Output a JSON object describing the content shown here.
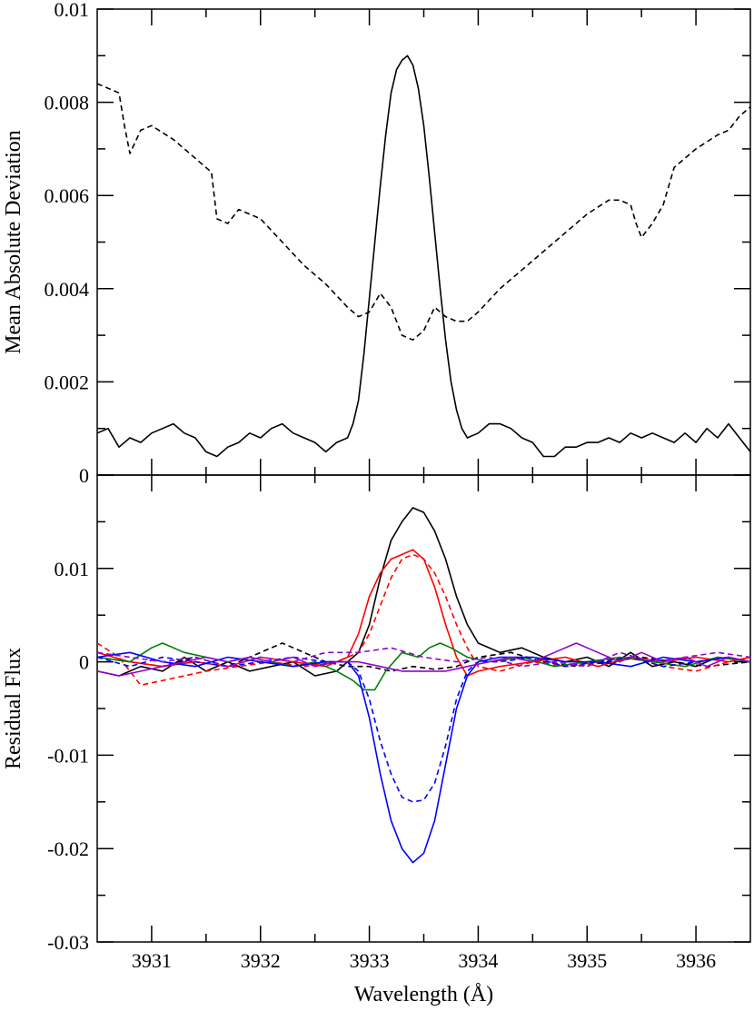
{
  "chart_data": [
    {
      "type": "line",
      "title": "",
      "xlabel": "",
      "ylabel": "Mean Absolute Deviation",
      "xlim": [
        3930.5,
        3936.5
      ],
      "ylim": [
        0,
        0.01
      ],
      "yticks": [
        0,
        0.002,
        0.004,
        0.006,
        0.008,
        0.01
      ],
      "ytick_labels": [
        "0",
        "0.002",
        "0.004",
        "0.006",
        "0.008",
        "0.01"
      ],
      "grid": false,
      "series": [
        {
          "color": "#000000",
          "dash": "solid",
          "x": [
            3930.5,
            3930.6,
            3930.7,
            3930.8,
            3930.9,
            3931.0,
            3931.1,
            3931.2,
            3931.3,
            3931.4,
            3931.5,
            3931.6,
            3931.7,
            3931.8,
            3931.9,
            3932.0,
            3932.1,
            3932.2,
            3932.3,
            3932.4,
            3932.5,
            3932.6,
            3932.7,
            3932.8,
            3932.85,
            3932.9,
            3932.95,
            3933.0,
            3933.05,
            3933.1,
            3933.15,
            3933.2,
            3933.25,
            3933.3,
            3933.35,
            3933.4,
            3933.45,
            3933.5,
            3933.55,
            3933.6,
            3933.65,
            3933.7,
            3933.75,
            3933.8,
            3933.85,
            3933.9,
            3934.0,
            3934.1,
            3934.2,
            3934.3,
            3934.4,
            3934.5,
            3934.6,
            3934.7,
            3934.8,
            3934.9,
            3935.0,
            3935.1,
            3935.2,
            3935.3,
            3935.4,
            3935.5,
            3935.6,
            3935.7,
            3935.8,
            3935.9,
            3936.0,
            3936.1,
            3936.2,
            3936.3,
            3936.4,
            3936.5
          ],
          "y": [
            0.0009,
            0.001,
            0.0006,
            0.0008,
            0.0007,
            0.0009,
            0.001,
            0.0011,
            0.0009,
            0.0008,
            0.0005,
            0.0004,
            0.0006,
            0.0007,
            0.0009,
            0.0008,
            0.001,
            0.0011,
            0.0009,
            0.0008,
            0.0007,
            0.0005,
            0.0007,
            0.0008,
            0.0011,
            0.0016,
            0.0026,
            0.0038,
            0.005,
            0.0062,
            0.0073,
            0.0082,
            0.0087,
            0.0089,
            0.009,
            0.0088,
            0.0083,
            0.0075,
            0.0064,
            0.0052,
            0.004,
            0.0029,
            0.002,
            0.0014,
            0.001,
            0.0008,
            0.0009,
            0.0011,
            0.0011,
            0.001,
            0.0008,
            0.0007,
            0.0004,
            0.0004,
            0.0006,
            0.0006,
            0.0007,
            0.0007,
            0.0008,
            0.0007,
            0.0009,
            0.0008,
            0.0009,
            0.0008,
            0.0007,
            0.0009,
            0.0007,
            0.001,
            0.0008,
            0.0011,
            0.0008,
            0.0005
          ]
        },
        {
          "color": "#000000",
          "dash": "dashed",
          "x": [
            3930.5,
            3930.6,
            3930.7,
            3930.75,
            3930.8,
            3930.9,
            3931.0,
            3931.2,
            3931.4,
            3931.55,
            3931.6,
            3931.7,
            3931.8,
            3932.0,
            3932.2,
            3932.4,
            3932.6,
            3932.8,
            3932.9,
            3933.0,
            3933.1,
            3933.2,
            3933.3,
            3933.4,
            3933.5,
            3933.6,
            3933.7,
            3933.8,
            3933.9,
            3934.0,
            3934.2,
            3934.4,
            3934.6,
            3934.8,
            3935.0,
            3935.2,
            3935.3,
            3935.4,
            3935.45,
            3935.5,
            3935.6,
            3935.7,
            3935.8,
            3936.0,
            3936.2,
            3936.3,
            3936.4,
            3936.5
          ],
          "y": [
            0.0084,
            0.0083,
            0.0082,
            0.0075,
            0.0069,
            0.0074,
            0.0075,
            0.0072,
            0.0068,
            0.0065,
            0.0055,
            0.0054,
            0.0057,
            0.0055,
            0.005,
            0.0045,
            0.0041,
            0.0036,
            0.0034,
            0.0035,
            0.0039,
            0.0036,
            0.003,
            0.0029,
            0.0031,
            0.0036,
            0.0034,
            0.0033,
            0.0033,
            0.0035,
            0.004,
            0.0044,
            0.0048,
            0.0052,
            0.0056,
            0.0059,
            0.0059,
            0.0058,
            0.0054,
            0.0051,
            0.0054,
            0.0058,
            0.0066,
            0.007,
            0.0073,
            0.0074,
            0.0077,
            0.0079
          ]
        }
      ]
    },
    {
      "type": "line",
      "title": "",
      "xlabel": "Wavelength (Å)",
      "ylabel": "Residual Flux",
      "xlim": [
        3930.5,
        3936.5
      ],
      "ylim": [
        -0.03,
        0.02
      ],
      "xticks": [
        3931,
        3932,
        3933,
        3934,
        3935,
        3936
      ],
      "xtick_labels": [
        "3931",
        "3932",
        "3933",
        "3934",
        "3935",
        "3936"
      ],
      "yticks": [
        -0.03,
        -0.02,
        -0.01,
        0,
        0.01
      ],
      "ytick_labels": [
        "-0.03",
        "-0.02",
        "-0.01",
        "0",
        "0.01"
      ],
      "grid": false,
      "series": [
        {
          "color": "#000000",
          "dash": "solid",
          "x": [
            3930.5,
            3930.7,
            3930.9,
            3931.1,
            3931.3,
            3931.5,
            3931.7,
            3931.9,
            3932.1,
            3932.3,
            3932.5,
            3932.7,
            3932.9,
            3933.0,
            3933.1,
            3933.2,
            3933.3,
            3933.4,
            3933.5,
            3933.6,
            3933.7,
            3933.8,
            3933.9,
            3934.0,
            3934.2,
            3934.4,
            3934.6,
            3934.8,
            3935.0,
            3935.2,
            3935.4,
            3935.6,
            3935.8,
            3936.0,
            3936.2,
            3936.5
          ],
          "y": [
            -0.001,
            -0.0015,
            -0.0005,
            -0.001,
            0.0005,
            -0.001,
            0,
            -0.001,
            -0.0005,
            0,
            -0.0015,
            -0.001,
            0.001,
            0.004,
            0.009,
            0.013,
            0.015,
            0.0165,
            0.016,
            0.014,
            0.011,
            0.007,
            0.004,
            0.002,
            0.001,
            0.0015,
            0.0005,
            0,
            0.0005,
            -0.0005,
            0.001,
            -0.0005,
            0,
            -0.0005,
            0.0005,
            0
          ]
        },
        {
          "color": "#000000",
          "dash": "dashed",
          "x": [
            3930.5,
            3930.8,
            3931.1,
            3931.4,
            3931.7,
            3932.0,
            3932.2,
            3932.4,
            3932.6,
            3932.8,
            3933.0,
            3933.2,
            3933.4,
            3933.6,
            3933.8,
            3934.0,
            3934.3,
            3934.6,
            3934.9,
            3935.2,
            3935.5,
            3935.8,
            3936.1,
            3936.5
          ],
          "y": [
            0.0005,
            0,
            -0.0005,
            0.0005,
            -0.0005,
            0.001,
            0.002,
            0.001,
            0,
            -0.0005,
            -0.0005,
            -0.001,
            -0.0005,
            -0.0008,
            -0.0005,
            0.0005,
            0.001,
            0,
            -0.0005,
            0,
            0.0005,
            0,
            -0.0005,
            0
          ]
        },
        {
          "color": "#ff0000",
          "dash": "solid",
          "x": [
            3930.5,
            3930.8,
            3931.1,
            3931.4,
            3931.7,
            3932.0,
            3932.3,
            3932.6,
            3932.8,
            3932.9,
            3933.0,
            3933.1,
            3933.2,
            3933.3,
            3933.4,
            3933.5,
            3933.6,
            3933.7,
            3933.8,
            3933.9,
            3934.0,
            3934.2,
            3934.5,
            3934.8,
            3935.1,
            3935.4,
            3935.7,
            3936.0,
            3936.3,
            3936.5
          ],
          "y": [
            0.001,
            0,
            -0.0005,
            0,
            -0.0005,
            0.0005,
            0,
            -0.0005,
            0.0005,
            0.003,
            0.007,
            0.0095,
            0.011,
            0.0115,
            0.012,
            0.011,
            0.008,
            0.004,
            0.0005,
            -0.0015,
            -0.001,
            -0.0005,
            0,
            0.0005,
            -0.0005,
            0.0005,
            0,
            0.0005,
            0,
            0.0005
          ]
        },
        {
          "color": "#ff0000",
          "dash": "dashed",
          "x": [
            3930.5,
            3930.7,
            3930.9,
            3931.1,
            3931.3,
            3931.5,
            3931.8,
            3932.1,
            3932.4,
            3932.7,
            3932.9,
            3933.0,
            3933.1,
            3933.2,
            3933.3,
            3933.4,
            3933.5,
            3933.6,
            3933.7,
            3933.8,
            3933.9,
            3934.0,
            3934.2,
            3934.5,
            3934.8,
            3935.1,
            3935.4,
            3935.7,
            3936.0,
            3936.3,
            3936.5
          ],
          "y": [
            0.002,
            0.0005,
            -0.0025,
            -0.002,
            -0.0015,
            -0.001,
            -0.0005,
            0,
            -0.0005,
            0,
            0.001,
            0.003,
            0.006,
            0.009,
            0.011,
            0.0115,
            0.011,
            0.0095,
            0.007,
            0.004,
            0.0015,
            -0.0005,
            -0.001,
            0,
            -0.0005,
            0,
            0.0005,
            -0.0005,
            -0.001,
            0,
            0.0005
          ]
        },
        {
          "color": "#008000",
          "dash": "solid",
          "x": [
            3930.5,
            3930.8,
            3931.0,
            3931.1,
            3931.3,
            3931.5,
            3931.7,
            3931.9,
            3932.1,
            3932.3,
            3932.5,
            3932.7,
            3932.85,
            3932.95,
            3933.05,
            3933.15,
            3933.3,
            3933.45,
            3933.55,
            3933.65,
            3933.75,
            3933.9,
            3934.1,
            3934.4,
            3934.7,
            3935.0,
            3935.3,
            3935.6,
            3935.9,
            3936.2,
            3936.5
          ],
          "y": [
            0.0005,
            0,
            0.0015,
            0.002,
            0.001,
            0.0005,
            0,
            0.0005,
            0,
            -0.0005,
            0,
            -0.001,
            -0.002,
            -0.003,
            -0.003,
            -0.001,
            0.001,
            0.0005,
            0.0015,
            0.002,
            0.0015,
            0.0005,
            0,
            0.0005,
            -0.0005,
            0,
            0.0005,
            0,
            -0.0005,
            0.0005,
            0
          ]
        },
        {
          "color": "#0000ff",
          "dash": "solid",
          "x": [
            3930.5,
            3930.8,
            3931.1,
            3931.4,
            3931.7,
            3932.0,
            3932.3,
            3932.6,
            3932.8,
            3932.9,
            3933.0,
            3933.1,
            3933.2,
            3933.3,
            3933.4,
            3933.5,
            3933.6,
            3933.7,
            3933.8,
            3933.9,
            3934.0,
            3934.2,
            3934.5,
            3934.8,
            3935.1,
            3935.4,
            3935.7,
            3936.0,
            3936.3,
            3936.5
          ],
          "y": [
            0.0005,
            0.001,
            0,
            -0.0005,
            0.0005,
            0,
            -0.0005,
            0,
            0,
            -0.0015,
            -0.006,
            -0.012,
            -0.017,
            -0.02,
            -0.0215,
            -0.0205,
            -0.017,
            -0.011,
            -0.005,
            -0.0015,
            0,
            0.0005,
            0.0005,
            0,
            0,
            -0.0005,
            0.0005,
            0,
            0.0005,
            0
          ]
        },
        {
          "color": "#0000ff",
          "dash": "dashed",
          "x": [
            3930.5,
            3930.8,
            3931.1,
            3931.4,
            3931.7,
            3932.0,
            3932.3,
            3932.6,
            3932.8,
            3932.9,
            3933.0,
            3933.1,
            3933.2,
            3933.3,
            3933.4,
            3933.5,
            3933.6,
            3933.7,
            3933.8,
            3933.9,
            3934.0,
            3934.2,
            3934.5,
            3934.8,
            3935.1,
            3935.4,
            3935.7,
            3936.0,
            3936.3,
            3936.5
          ],
          "y": [
            0.0005,
            -0.0005,
            0.0005,
            0,
            -0.0005,
            0,
            0.0005,
            0,
            0,
            -0.001,
            -0.004,
            -0.0085,
            -0.012,
            -0.0145,
            -0.015,
            -0.0148,
            -0.013,
            -0.009,
            -0.004,
            -0.001,
            0,
            0,
            0.0005,
            -0.0005,
            0,
            0.0005,
            -0.0005,
            0,
            0.0005,
            0
          ]
        },
        {
          "color": "#9400d3",
          "dash": "solid",
          "x": [
            3930.5,
            3930.7,
            3930.9,
            3931.1,
            3931.3,
            3931.5,
            3931.7,
            3931.9,
            3932.1,
            3932.3,
            3932.5,
            3932.7,
            3932.9,
            3933.1,
            3933.3,
            3933.5,
            3933.7,
            3933.9,
            3934.1,
            3934.3,
            3934.5,
            3934.7,
            3934.9,
            3935.1,
            3935.3,
            3935.5,
            3935.7,
            3935.9,
            3936.1,
            3936.3,
            3936.5
          ],
          "y": [
            -0.001,
            -0.0015,
            -0.001,
            -0.0005,
            0,
            0.0005,
            0,
            0.0005,
            0,
            0.0005,
            -0.0005,
            0,
            0,
            -0.0005,
            -0.001,
            -0.001,
            -0.001,
            -0.0005,
            0,
            0.0005,
            0,
            0.001,
            0.002,
            0.001,
            0,
            0.001,
            0,
            0.0005,
            -0.0005,
            0.0005,
            0
          ]
        },
        {
          "color": "#9400d3",
          "dash": "dashed",
          "x": [
            3930.5,
            3930.8,
            3931.1,
            3931.4,
            3931.7,
            3932.0,
            3932.3,
            3932.6,
            3932.9,
            3933.2,
            3933.5,
            3933.8,
            3934.1,
            3934.4,
            3934.7,
            3935.0,
            3935.3,
            3935.6,
            3935.9,
            3936.2,
            3936.5
          ],
          "y": [
            0.001,
            0.0005,
            0,
            0.0005,
            -0.0005,
            0.0005,
            0,
            0.001,
            0.001,
            0.0015,
            0.0005,
            0,
            0.0005,
            -0.0005,
            0,
            -0.0005,
            0.001,
            0,
            0.0005,
            0.001,
            0.0005
          ]
        }
      ]
    }
  ]
}
